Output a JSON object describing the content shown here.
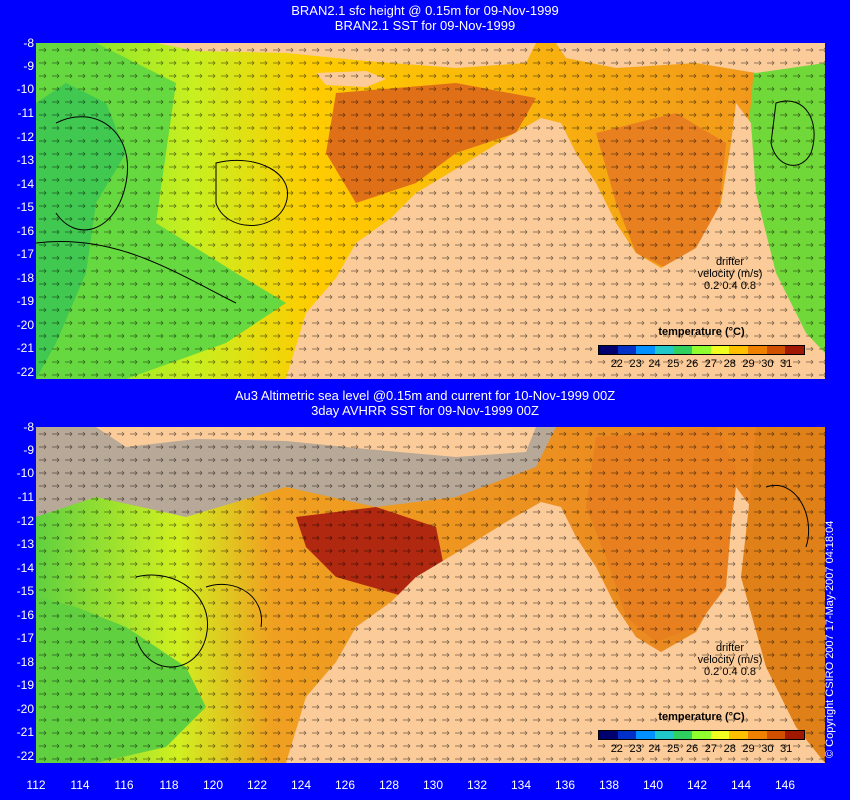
{
  "top_panel": {
    "title_line1": "BRAN2.1 sfc height @ 0.15m for 09-Nov-1999",
    "title_line2": "BRAN2.1 SST for 09-Nov-1999",
    "drifter_label": "drifter",
    "velocity_label": "velocity (m/s)",
    "velocity_values": "0.2 0.4 0.8",
    "legend_title": "temperature (°C)"
  },
  "bottom_panel": {
    "title_line1": "Au3 Altimetric sea level  @0.15m and current for 10-Nov-1999 00Z",
    "title_line2": "3day AVHRR SST for 09-Nov-1999 00Z",
    "drifter_label": "drifter",
    "velocity_label": "velocity (m/s)",
    "velocity_values": "0.2 0.4 0.8",
    "legend_title": "temperature (°C)"
  },
  "copyright": "© Copyright CSIRO 2007   17-May-2007 04:18:04",
  "axes": {
    "lat_ticks": [
      "-8",
      "-9",
      "-10",
      "-11",
      "-12",
      "-13",
      "-14",
      "-15",
      "-16",
      "-17",
      "-18",
      "-19",
      "-20",
      "-21",
      "-22"
    ],
    "lon_ticks": [
      "112",
      "114",
      "116",
      "118",
      "120",
      "122",
      "124",
      "126",
      "128",
      "130",
      "132",
      "134",
      "136",
      "138",
      "140",
      "142",
      "144",
      "146"
    ]
  },
  "colorbar": {
    "tick_labels": [
      "22",
      "23",
      "24",
      "25",
      "26",
      "27",
      "28",
      "29",
      "30",
      "31"
    ],
    "colors": [
      "#00006e",
      "#0030c8",
      "#0090ff",
      "#20c8c8",
      "#30d060",
      "#90ff30",
      "#f0ff20",
      "#ffc000",
      "#f08000",
      "#d05000",
      "#a01800"
    ]
  },
  "colors": {
    "background": "#0000ff",
    "land": "#fbcb9a",
    "cloud": "#b8a898"
  }
}
